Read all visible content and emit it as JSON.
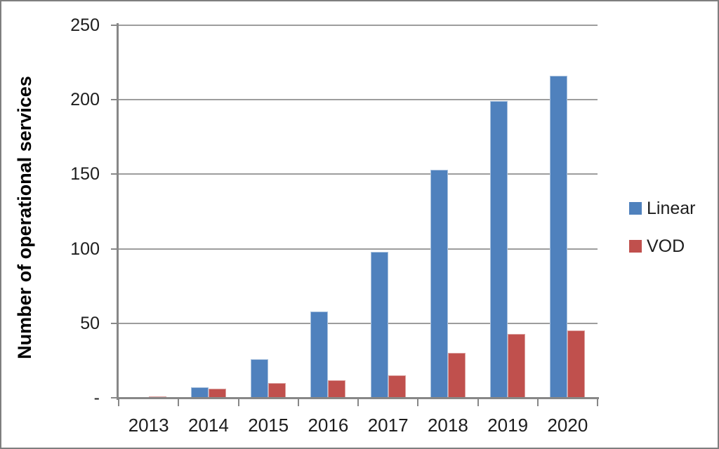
{
  "chart_data": {
    "type": "bar",
    "categories": [
      "2013",
      "2014",
      "2015",
      "2016",
      "2017",
      "2018",
      "2019",
      "2020"
    ],
    "series": [
      {
        "name": "Linear",
        "color": "#4F81BD",
        "edge_color": "#a8c1de",
        "values": [
          0,
          7,
          26,
          58,
          98,
          153,
          199,
          216
        ]
      },
      {
        "name": "VOD",
        "color": "#C0504D",
        "edge_color": "#dba09e",
        "values": [
          1,
          6,
          10,
          12,
          15,
          30,
          43,
          45
        ]
      }
    ],
    "title": "",
    "xlabel": "",
    "ylabel": "Number of operational services",
    "ylim": [
      0,
      250
    ],
    "ytick_values": [
      0,
      50,
      100,
      150,
      200,
      250
    ],
    "ytick_labels": [
      "-",
      "50",
      "100",
      "150",
      "200",
      "250"
    ],
    "grid": true,
    "legend_position": "right"
  }
}
